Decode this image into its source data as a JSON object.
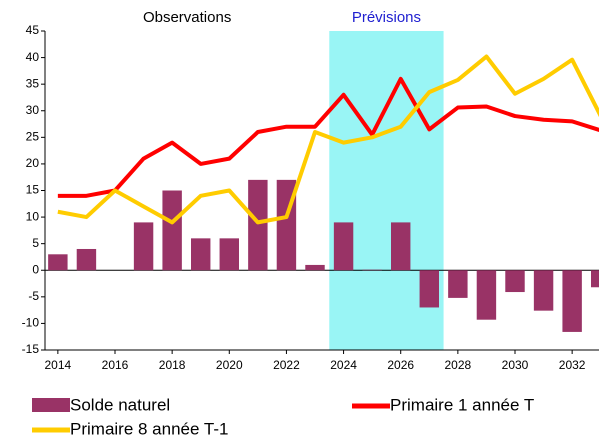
{
  "chart_data": {
    "type": "bar-line",
    "annotations": [
      {
        "text": "Observations",
        "color": "#000000"
      },
      {
        "text": "Prévisions",
        "color": "#1f1fd0"
      }
    ],
    "forecast_span": [
      2023.5,
      2027.5
    ],
    "forecast_color": "#99f5f5",
    "x": [
      2014,
      2015,
      2016,
      2017,
      2018,
      2019,
      2020,
      2021,
      2022,
      2023,
      2024,
      2025,
      2026,
      2027,
      2028,
      2029,
      2030,
      2031,
      2032,
      2033
    ],
    "xlim": [
      2013.55,
      2032.94
    ],
    "xticks": [
      2014,
      2016,
      2018,
      2020,
      2022,
      2024,
      2026,
      2028,
      2030,
      2032
    ],
    "ylim": [
      -15,
      45
    ],
    "yticks": [
      -15,
      -10,
      -5,
      0,
      5,
      10,
      15,
      20,
      25,
      30,
      35,
      40,
      45
    ],
    "series": [
      {
        "name": "Solde naturel",
        "type": "bar",
        "color": "#993366",
        "values": [
          3,
          4,
          0,
          9,
          15,
          6,
          6,
          17,
          17,
          1,
          9,
          0.1,
          9,
          -7,
          -5.2,
          -9.3,
          -4.1,
          -7.6,
          -11.6,
          -3.2
        ]
      },
      {
        "name": "Primaire 1 année T",
        "type": "line",
        "color": "#ff0000",
        "values": [
          14,
          14,
          15,
          21,
          24,
          20,
          21,
          26,
          27,
          27,
          33,
          25.5,
          36,
          26.5,
          30.6,
          30.8,
          29,
          28.3,
          28,
          26.3
        ]
      },
      {
        "name": "Primaire 8 année T-1",
        "type": "line",
        "color": "#ffcc00",
        "values": [
          11,
          10,
          15,
          12,
          9,
          14,
          15,
          9,
          10,
          26,
          24,
          25,
          27,
          33.5,
          35.8,
          40.2,
          33.2,
          36,
          39.6,
          29
        ]
      }
    ]
  }
}
